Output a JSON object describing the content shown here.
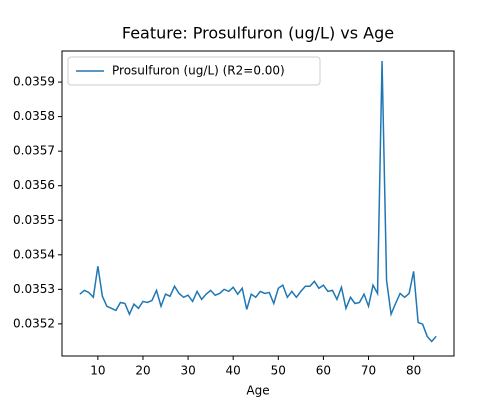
{
  "chart_data": {
    "type": "line",
    "title": "Feature: Prosulfuron (ug/L) vs Age",
    "xlabel": "Age",
    "x": [
      6,
      7,
      8,
      9,
      10,
      11,
      12,
      13,
      14,
      15,
      16,
      17,
      18,
      19,
      20,
      21,
      22,
      23,
      24,
      25,
      26,
      27,
      28,
      29,
      30,
      31,
      32,
      33,
      34,
      35,
      36,
      37,
      38,
      39,
      40,
      41,
      42,
      43,
      44,
      45,
      46,
      47,
      48,
      49,
      50,
      51,
      52,
      53,
      54,
      55,
      56,
      57,
      58,
      59,
      60,
      61,
      62,
      63,
      64,
      65,
      66,
      67,
      68,
      69,
      70,
      71,
      72,
      73,
      74,
      75,
      76,
      77,
      78,
      79,
      80,
      81,
      82,
      83,
      84,
      85
    ],
    "series": [
      {
        "name": "Prosulfuron (ug/L) (R2=0.00)",
        "color": "#1f77b4",
        "values": [
          0.035286,
          0.035297,
          0.035291,
          0.035277,
          0.035367,
          0.03528,
          0.035251,
          0.035245,
          0.035239,
          0.035262,
          0.035259,
          0.035228,
          0.035257,
          0.035245,
          0.035265,
          0.035262,
          0.035268,
          0.035297,
          0.035251,
          0.035286,
          0.03528,
          0.035309,
          0.035288,
          0.035277,
          0.035283,
          0.035265,
          0.035294,
          0.035271,
          0.035286,
          0.035297,
          0.035283,
          0.035288,
          0.0353,
          0.035294,
          0.035306,
          0.035286,
          0.035303,
          0.035242,
          0.035286,
          0.035277,
          0.035294,
          0.035288,
          0.035291,
          0.035259,
          0.035303,
          0.035312,
          0.035277,
          0.035294,
          0.035277,
          0.035294,
          0.035309,
          0.035309,
          0.035323,
          0.035303,
          0.035312,
          0.035294,
          0.035297,
          0.035271,
          0.035306,
          0.035245,
          0.035277,
          0.035259,
          0.035262,
          0.035286,
          0.035251,
          0.035312,
          0.035288,
          0.035961,
          0.035326,
          0.035228,
          0.035259,
          0.035288,
          0.035277,
          0.035288,
          0.035352,
          0.035204,
          0.035199,
          0.035164,
          0.035149,
          0.035164
        ]
      }
    ],
    "xlim": [
      2.05,
      88.95
    ],
    "ylim": [
      0.035107,
      0.03599
    ],
    "xticks": [
      10,
      20,
      30,
      40,
      50,
      60,
      70,
      80
    ],
    "yticks": [
      0.0352,
      0.0353,
      0.0354,
      0.0355,
      0.0356,
      0.0357,
      0.0358,
      0.0359
    ],
    "legend": "upper left"
  }
}
